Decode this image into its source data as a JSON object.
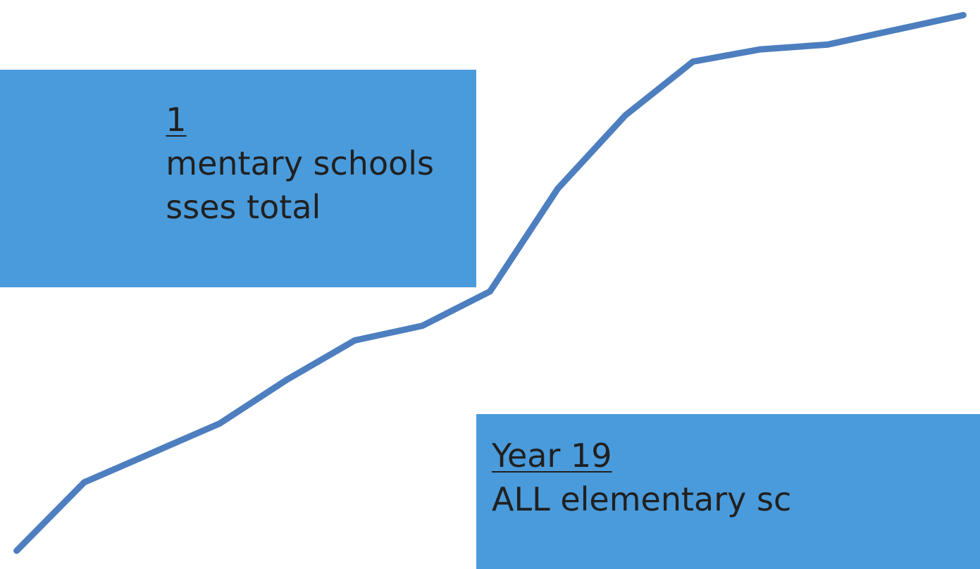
{
  "chart_data": {
    "type": "line",
    "x": [
      1,
      2,
      3,
      4,
      5,
      6,
      7,
      8,
      9,
      10,
      11,
      12,
      13,
      14,
      15
    ],
    "series": [
      {
        "values": [
          2,
          16,
          22,
          28,
          37,
          45,
          48,
          55,
          76,
          91,
          102,
          104.5,
          105.5,
          108.5,
          111.5
        ],
        "color": "#4d7ebf"
      }
    ],
    "xlim": [
      0.9,
      15.1
    ],
    "ylim": [
      0,
      112
    ],
    "grid": false,
    "legend": "none"
  },
  "annotations": {
    "left": {
      "heading": "1",
      "line1": "mentary schools",
      "line2": "sses total"
    },
    "right": {
      "heading": "Year 19",
      "line1": "ALL elementary sc"
    }
  },
  "colors": {
    "callout_bg": "#4a9bdb",
    "line": "#4d7ebf",
    "text": "#202020"
  }
}
